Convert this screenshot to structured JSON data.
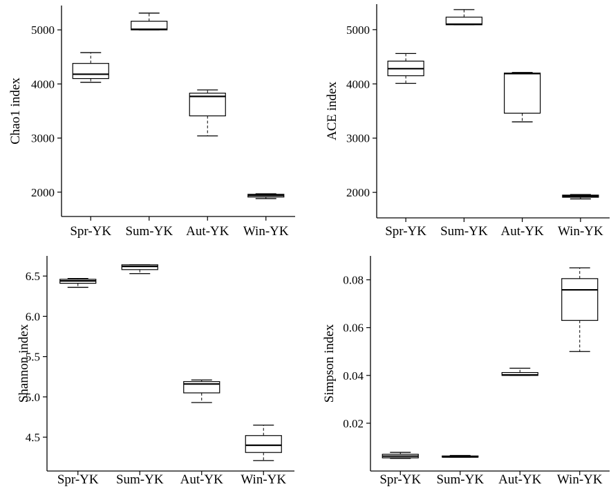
{
  "chart_data": [
    {
      "type": "box",
      "ylabel": "Chao1 index",
      "categories": [
        "Spr-YK",
        "Sum-YK",
        "Aut-YK",
        "Win-YK"
      ],
      "ylim": [
        1550,
        5450
      ],
      "yticks": [
        2000,
        3000,
        4000,
        5000
      ],
      "ytick_labels": [
        "2000",
        "3000",
        "4000",
        "5000"
      ],
      "boxes": [
        {
          "min": 4030,
          "q1": 4100,
          "median": 4180,
          "q3": 4380,
          "max": 4580
        },
        {
          "min": 5000,
          "q1": 5000,
          "median": 5010,
          "q3": 5160,
          "max": 5310
        },
        {
          "min": 3040,
          "q1": 3410,
          "median": 3770,
          "q3": 3830,
          "max": 3890
        },
        {
          "min": 1880,
          "q1": 1910,
          "median": 1940,
          "q3": 1960,
          "max": 1970
        }
      ]
    },
    {
      "type": "box",
      "ylabel": "ACE index",
      "categories": [
        "Spr-YK",
        "Sum-YK",
        "Aut-YK",
        "Win-YK"
      ],
      "ylim": [
        1530,
        5470
      ],
      "yticks": [
        2000,
        3000,
        4000,
        5000
      ],
      "ytick_labels": [
        "2000",
        "3000",
        "4000",
        "5000"
      ],
      "boxes": [
        {
          "min": 4010,
          "q1": 4150,
          "median": 4280,
          "q3": 4420,
          "max": 4560
        },
        {
          "min": 5090,
          "q1": 5090,
          "median": 5100,
          "q3": 5230,
          "max": 5370
        },
        {
          "min": 3300,
          "q1": 3460,
          "median": 4190,
          "q3": 4200,
          "max": 4210
        },
        {
          "min": 1880,
          "q1": 1910,
          "median": 1930,
          "q3": 1950,
          "max": 1960
        }
      ]
    },
    {
      "type": "box",
      "ylabel": "Shannon index",
      "categories": [
        "Spr-YK",
        "Sum-YK",
        "Aut-YK",
        "Win-YK"
      ],
      "ylim": [
        4.08,
        6.75
      ],
      "yticks": [
        4.5,
        5.0,
        5.5,
        6.0,
        6.5
      ],
      "ytick_labels": [
        "4.5",
        "5.0",
        "5.5",
        "6.0",
        "6.5"
      ],
      "boxes": [
        {
          "min": 6.36,
          "q1": 6.41,
          "median": 6.44,
          "q3": 6.46,
          "max": 6.47
        },
        {
          "min": 6.53,
          "q1": 6.58,
          "median": 6.62,
          "q3": 6.64,
          "max": 6.64
        },
        {
          "min": 4.93,
          "q1": 5.05,
          "median": 5.16,
          "q3": 5.19,
          "max": 5.21
        },
        {
          "min": 4.21,
          "q1": 4.31,
          "median": 4.4,
          "q3": 4.52,
          "max": 4.65
        }
      ]
    },
    {
      "type": "box",
      "ylabel": "Simpson index",
      "categories": [
        "Spr-YK",
        "Sum-YK",
        "Aut-YK",
        "Win-YK"
      ],
      "ylim": [
        0.0,
        0.09
      ],
      "yticks": [
        0.02,
        0.04,
        0.06,
        0.08
      ],
      "ytick_labels": [
        "0.02",
        "0.04",
        "0.06",
        "0.08"
      ],
      "boxes": [
        {
          "min": 0.0053,
          "q1": 0.0055,
          "median": 0.0062,
          "q3": 0.007,
          "max": 0.0078
        },
        {
          "min": 0.0058,
          "q1": 0.0058,
          "median": 0.0059,
          "q3": 0.0063,
          "max": 0.0065
        },
        {
          "min": 0.04,
          "q1": 0.04,
          "median": 0.0402,
          "q3": 0.0412,
          "max": 0.043
        },
        {
          "min": 0.05,
          "q1": 0.063,
          "median": 0.0758,
          "q3": 0.0805,
          "max": 0.085
        }
      ]
    }
  ]
}
